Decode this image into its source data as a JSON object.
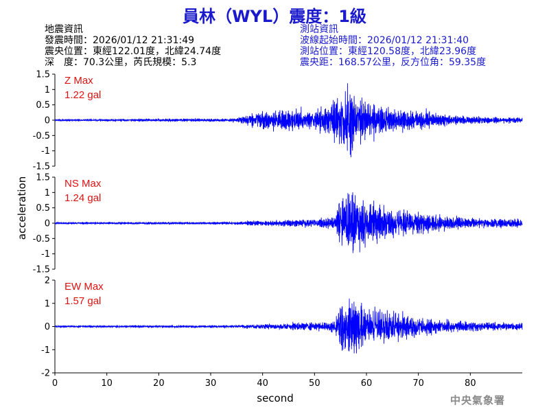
{
  "header": {
    "title": "員林（WYL）震度：1級"
  },
  "quake_info": {
    "heading": "地震資訊",
    "time": "發震時間：2026/01/12 21:31:49",
    "epicenter": "震央位置：東經122.01度，北緯24.74度",
    "depth": "深　度：70.3公里，芮氏規模：5.3"
  },
  "station_info": {
    "heading": "測站資訊",
    "wave_start": "波線起始時間：2026/01/12 21:31:40",
    "location": "測站位置：東經120.58度，北緯23.96度",
    "distance": "震央距：168.57公里，反方位角：59.35度"
  },
  "footer": {
    "agency": "中央氣象署"
  },
  "chart_data": {
    "type": "line",
    "xlabel": "second",
    "ylabel": "acceleration",
    "xlim": [
      0,
      90
    ],
    "x_ticks": [
      0,
      10,
      20,
      30,
      40,
      50,
      60,
      70,
      80
    ],
    "color": "#0000ff",
    "grid": false,
    "panels": [
      {
        "name": "Z Max",
        "max_label": "Z Max",
        "max_value": "1.22 gal",
        "ylim": [
          -1.5,
          1.5
        ],
        "y_ticks": [
          "1.5",
          "1",
          "0.5",
          "0",
          "-0.5",
          "-1",
          "-1.5"
        ],
        "y_tick_values": [
          1.5,
          1,
          0.5,
          0,
          -0.5,
          -1,
          -1.5
        ],
        "envelope_t": [
          0,
          35,
          36,
          40,
          43,
          47,
          50,
          53,
          55,
          57,
          60,
          65,
          70,
          75,
          80,
          90
        ],
        "envelope_a": [
          0.03,
          0.05,
          0.12,
          0.25,
          0.3,
          0.28,
          0.3,
          0.42,
          0.75,
          0.9,
          0.55,
          0.35,
          0.28,
          0.16,
          0.12,
          0.08
        ]
      },
      {
        "name": "NS Max",
        "max_label": "NS Max",
        "max_value": "1.24 gal",
        "ylim": [
          -1.5,
          1.5
        ],
        "y_ticks": [
          "1.5",
          "1",
          "0.5",
          "0",
          "-0.5",
          "-1",
          "-1.5"
        ],
        "y_tick_values": [
          1.5,
          1,
          0.5,
          0,
          -0.5,
          -1,
          -1.5
        ],
        "envelope_t": [
          0,
          35,
          38,
          45,
          50,
          54,
          55,
          57,
          60,
          65,
          70,
          75,
          80,
          90
        ],
        "envelope_a": [
          0.03,
          0.04,
          0.07,
          0.1,
          0.13,
          0.2,
          0.85,
          0.9,
          0.65,
          0.45,
          0.32,
          0.22,
          0.16,
          0.13
        ]
      },
      {
        "name": "EW Max",
        "max_label": "EW Max",
        "max_value": "1.57 gal",
        "ylim": [
          -2,
          2
        ],
        "y_ticks": [
          "2",
          "1",
          "0",
          "-1",
          "-2"
        ],
        "y_tick_values": [
          2,
          1,
          0,
          -1,
          -2
        ],
        "envelope_t": [
          0,
          35,
          38,
          45,
          50,
          54,
          55,
          57,
          60,
          65,
          70,
          75,
          80,
          90
        ],
        "envelope_a": [
          0.04,
          0.05,
          0.09,
          0.13,
          0.17,
          0.25,
          1.1,
          1.2,
          0.8,
          0.6,
          0.4,
          0.25,
          0.18,
          0.14
        ]
      }
    ]
  }
}
